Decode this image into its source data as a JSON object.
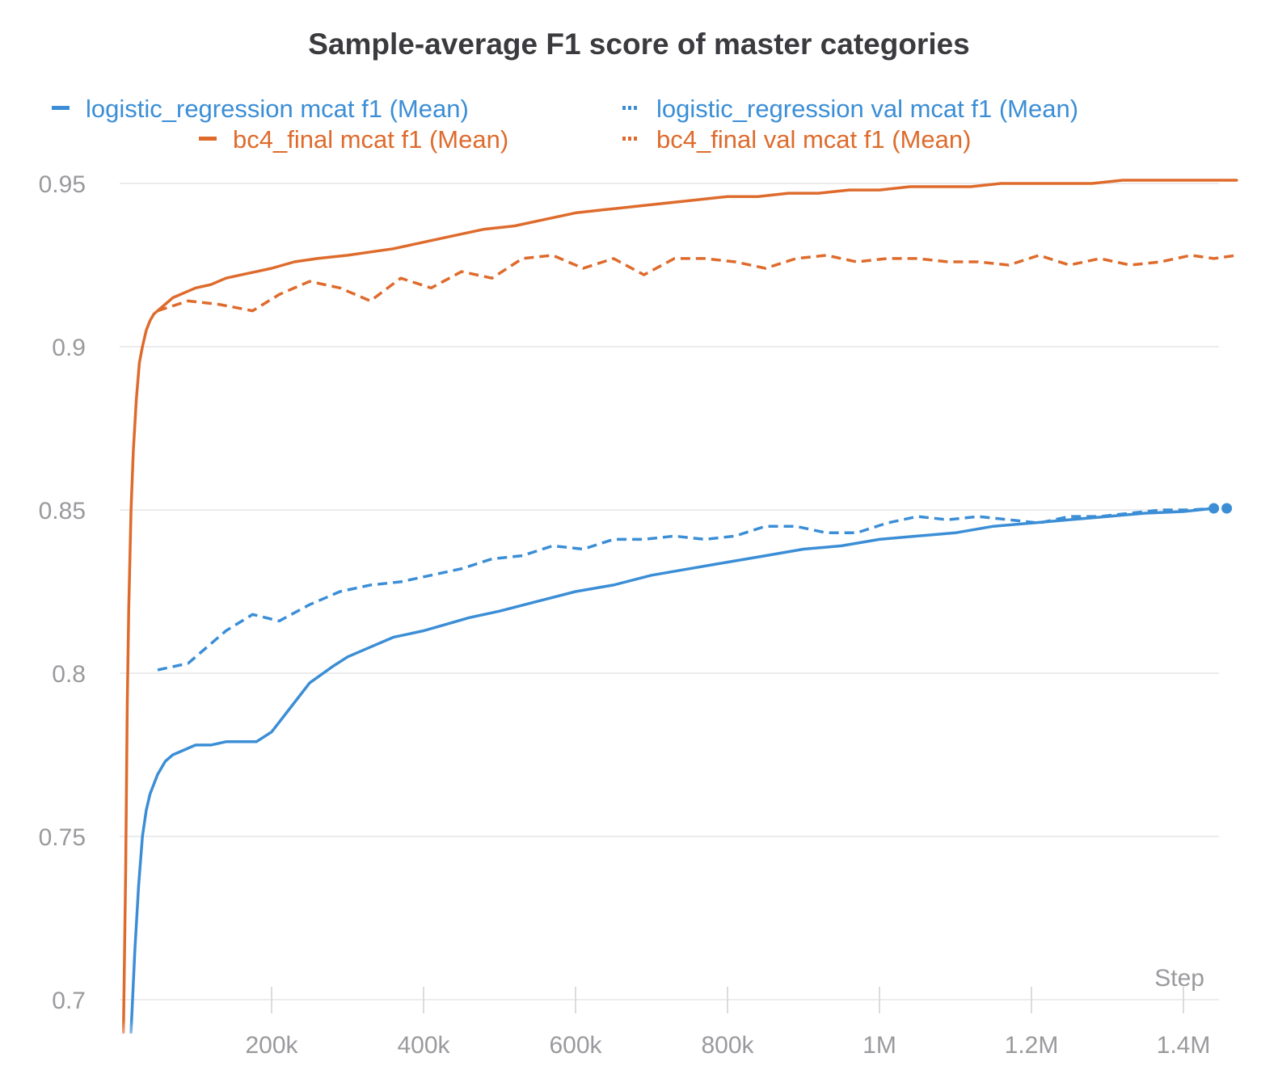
{
  "chart_data": {
    "type": "line",
    "title": "Sample-average F1 score of master categories",
    "xlabel": "Step",
    "ylabel": "",
    "xlim": [
      0,
      1460000
    ],
    "ylim": [
      0.69,
      0.955
    ],
    "x_ticks": [
      200000,
      400000,
      600000,
      800000,
      1000000,
      1200000,
      1400000
    ],
    "x_tick_labels": [
      "200k",
      "400k",
      "600k",
      "800k",
      "1M",
      "1.2M",
      "1.4M"
    ],
    "y_ticks": [
      0.7,
      0.75,
      0.8,
      0.85,
      0.9,
      0.95
    ],
    "y_tick_labels": [
      "0.7",
      "0.75",
      "0.8",
      "0.85",
      "0.9",
      "0.95"
    ],
    "grid": true,
    "legend_position": "top",
    "series": [
      {
        "name": "logistic_regression mcat f1 (Mean)",
        "color": "#3b8ed6",
        "style": "solid",
        "x": [
          15000,
          20000,
          25000,
          30000,
          35000,
          40000,
          50000,
          60000,
          70000,
          80000,
          90000,
          100000,
          120000,
          140000,
          160000,
          180000,
          200000,
          220000,
          250000,
          280000,
          300000,
          330000,
          360000,
          400000,
          430000,
          460000,
          500000,
          550000,
          600000,
          650000,
          700000,
          750000,
          800000,
          850000,
          900000,
          950000,
          1000000,
          1050000,
          1100000,
          1150000,
          1200000,
          1250000,
          1300000,
          1350000,
          1400000,
          1440000
        ],
        "y": [
          0.69,
          0.715,
          0.735,
          0.75,
          0.758,
          0.763,
          0.769,
          0.773,
          0.775,
          0.776,
          0.777,
          0.778,
          0.778,
          0.779,
          0.779,
          0.779,
          0.782,
          0.788,
          0.797,
          0.802,
          0.805,
          0.808,
          0.811,
          0.813,
          0.815,
          0.817,
          0.819,
          0.822,
          0.825,
          0.827,
          0.83,
          0.832,
          0.834,
          0.836,
          0.838,
          0.839,
          0.841,
          0.842,
          0.843,
          0.845,
          0.846,
          0.847,
          0.848,
          0.849,
          0.8495,
          0.8505
        ]
      },
      {
        "name": "logistic_regression val mcat f1 (Mean)",
        "color": "#3b8ed6",
        "style": "dashed",
        "x": [
          50000,
          90000,
          140000,
          175000,
          210000,
          250000,
          290000,
          330000,
          370000,
          410000,
          450000,
          490000,
          530000,
          570000,
          610000,
          650000,
          690000,
          730000,
          770000,
          810000,
          850000,
          890000,
          930000,
          970000,
          1010000,
          1050000,
          1090000,
          1130000,
          1170000,
          1210000,
          1250000,
          1290000,
          1330000,
          1370000,
          1410000,
          1440000
        ],
        "y": [
          0.801,
          0.803,
          0.813,
          0.818,
          0.816,
          0.821,
          0.825,
          0.827,
          0.828,
          0.83,
          0.832,
          0.835,
          0.836,
          0.839,
          0.838,
          0.841,
          0.841,
          0.842,
          0.841,
          0.842,
          0.845,
          0.845,
          0.843,
          0.843,
          0.846,
          0.848,
          0.847,
          0.848,
          0.847,
          0.846,
          0.848,
          0.848,
          0.849,
          0.85,
          0.85,
          0.8505
        ]
      },
      {
        "name": "bc4_final mcat f1 (Mean)",
        "color": "#de6b2c",
        "style": "solid",
        "x": [
          5000,
          8000,
          10000,
          12000,
          15000,
          18000,
          22000,
          26000,
          30000,
          35000,
          40000,
          45000,
          50000,
          60000,
          70000,
          80000,
          90000,
          100000,
          120000,
          140000,
          160000,
          180000,
          200000,
          230000,
          260000,
          300000,
          330000,
          360000,
          400000,
          440000,
          480000,
          520000,
          560000,
          600000,
          640000,
          680000,
          720000,
          760000,
          800000,
          840000,
          880000,
          920000,
          960000,
          1000000,
          1040000,
          1080000,
          1120000,
          1160000,
          1200000,
          1240000,
          1280000,
          1320000,
          1360000,
          1400000,
          1440000,
          1470000
        ],
        "y": [
          0.69,
          0.74,
          0.79,
          0.82,
          0.85,
          0.868,
          0.884,
          0.895,
          0.9,
          0.905,
          0.908,
          0.91,
          0.911,
          0.913,
          0.915,
          0.916,
          0.917,
          0.918,
          0.919,
          0.921,
          0.922,
          0.923,
          0.924,
          0.926,
          0.927,
          0.928,
          0.929,
          0.93,
          0.932,
          0.934,
          0.936,
          0.937,
          0.939,
          0.941,
          0.942,
          0.943,
          0.944,
          0.945,
          0.946,
          0.946,
          0.947,
          0.947,
          0.948,
          0.948,
          0.949,
          0.949,
          0.949,
          0.95,
          0.95,
          0.95,
          0.95,
          0.951,
          0.951,
          0.951,
          0.951,
          0.951
        ]
      },
      {
        "name": "bc4_final val mcat f1 (Mean)",
        "color": "#de6b2c",
        "style": "dashed",
        "x": [
          50000,
          90000,
          130000,
          175000,
          210000,
          250000,
          290000,
          330000,
          370000,
          410000,
          450000,
          490000,
          530000,
          570000,
          610000,
          650000,
          690000,
          730000,
          770000,
          810000,
          850000,
          890000,
          930000,
          970000,
          1010000,
          1050000,
          1090000,
          1130000,
          1170000,
          1210000,
          1250000,
          1290000,
          1330000,
          1370000,
          1410000,
          1440000,
          1470000
        ],
        "y": [
          0.911,
          0.914,
          0.913,
          0.911,
          0.916,
          0.92,
          0.918,
          0.914,
          0.921,
          0.918,
          0.923,
          0.921,
          0.927,
          0.928,
          0.924,
          0.927,
          0.922,
          0.927,
          0.927,
          0.926,
          0.924,
          0.927,
          0.928,
          0.926,
          0.927,
          0.927,
          0.926,
          0.926,
          0.925,
          0.928,
          0.925,
          0.927,
          0.925,
          0.926,
          0.928,
          0.927,
          0.928
        ]
      }
    ]
  }
}
